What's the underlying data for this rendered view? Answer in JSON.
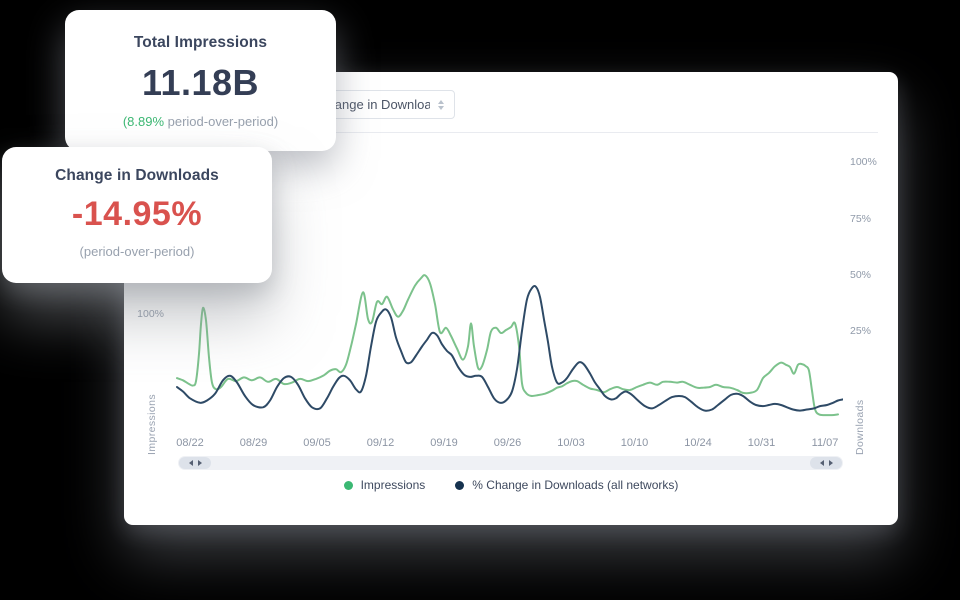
{
  "cards": [
    {
      "title": "Total Impressions",
      "value": "11.18B",
      "sub_highlight": "(8.89%",
      "sub_rest": " period-over-period)"
    },
    {
      "title": "Change in Downloads",
      "value": "-14.95%",
      "sub": "(period-over-period)"
    }
  ],
  "panel": {
    "dropdown_value": "% Change in Downloads"
  },
  "icons": {
    "dropdown_chevron": "select-up-down-chevron",
    "scroll_left_arrow": "left-triangle",
    "scroll_right_arrow": "right-triangle"
  },
  "colors": {
    "green_accent": "#3db874",
    "red_accent": "#d9524e",
    "navy_text": "#343e55",
    "gray_text": "#98a1ae"
  },
  "chart_data": {
    "type": "line",
    "title": "",
    "grid": false,
    "legend_position": "bottom",
    "x_tick_labels": [
      "08/22",
      "08/29",
      "09/05",
      "09/12",
      "09/19",
      "09/26",
      "10/03",
      "10/10",
      "10/24",
      "10/31",
      "11/07"
    ],
    "left_axis": {
      "label": "Impressions",
      "ticks": [
        "100%"
      ],
      "units": "percent"
    },
    "right_axis": {
      "label": "Downloads",
      "ticks": [
        "100%",
        "75%",
        "50%",
        "25%"
      ],
      "range_shown": [
        0,
        100
      ],
      "units": "percent"
    },
    "series": [
      {
        "name": "Impressions",
        "axis": "left",
        "line_color": "#7cc28c",
        "legend_color": "#3bb873",
        "points": [
          [
            2,
            12
          ],
          [
            8,
            9
          ],
          [
            14,
            4
          ],
          [
            18,
            2
          ],
          [
            21,
            8
          ],
          [
            24,
            45
          ],
          [
            26,
            85
          ],
          [
            28,
            107
          ],
          [
            31,
            90
          ],
          [
            34,
            40
          ],
          [
            37,
            6
          ],
          [
            41,
            -3
          ],
          [
            46,
            0
          ],
          [
            53,
            11
          ],
          [
            61,
            8
          ],
          [
            69,
            13
          ],
          [
            77,
            9
          ],
          [
            85,
            13
          ],
          [
            93,
            7
          ],
          [
            101,
            11
          ],
          [
            109,
            4
          ],
          [
            117,
            6
          ],
          [
            125,
            11
          ],
          [
            133,
            8
          ],
          [
            141,
            11
          ],
          [
            149,
            16
          ],
          [
            155,
            22
          ],
          [
            161,
            24
          ],
          [
            166,
            20
          ],
          [
            171,
            30
          ],
          [
            176,
            55
          ],
          [
            181,
            85
          ],
          [
            188,
            128
          ],
          [
            193,
            92
          ],
          [
            197,
            88
          ],
          [
            202,
            115
          ],
          [
            207,
            112
          ],
          [
            212,
            122
          ],
          [
            218,
            105
          ],
          [
            223,
            95
          ],
          [
            228,
            103
          ],
          [
            233,
            118
          ],
          [
            240,
            137
          ],
          [
            246,
            147
          ],
          [
            250,
            151
          ],
          [
            255,
            140
          ],
          [
            260,
            112
          ],
          [
            265,
            74
          ],
          [
            271,
            80
          ],
          [
            276,
            69
          ],
          [
            282,
            52
          ],
          [
            288,
            37
          ],
          [
            293,
            55
          ],
          [
            296,
            86
          ],
          [
            299,
            55
          ],
          [
            303,
            26
          ],
          [
            307,
            28
          ],
          [
            312,
            50
          ],
          [
            316,
            75
          ],
          [
            321,
            80
          ],
          [
            326,
            73
          ],
          [
            331,
            77
          ],
          [
            336,
            81
          ],
          [
            340,
            86
          ],
          [
            344,
            55
          ],
          [
            347,
            5
          ],
          [
            351,
            -8
          ],
          [
            356,
            -12
          ],
          [
            363,
            -11
          ],
          [
            370,
            -9
          ],
          [
            377,
            -5
          ],
          [
            382,
            -1
          ],
          [
            387,
            1
          ],
          [
            392,
            5
          ],
          [
            397,
            8
          ],
          [
            402,
            8
          ],
          [
            408,
            3
          ],
          [
            415,
            -2
          ],
          [
            422,
            -4
          ],
          [
            429,
            -7
          ],
          [
            435,
            -3
          ],
          [
            442,
            0
          ],
          [
            448,
            -3
          ],
          [
            455,
            -4
          ],
          [
            462,
            0
          ],
          [
            468,
            3
          ],
          [
            475,
            6
          ],
          [
            482,
            3
          ],
          [
            488,
            7
          ],
          [
            495,
            7
          ],
          [
            502,
            6
          ],
          [
            508,
            7
          ],
          [
            515,
            3
          ],
          [
            522,
            -1
          ],
          [
            528,
            -1
          ],
          [
            535,
            0
          ],
          [
            541,
            3
          ],
          [
            548,
            0
          ],
          [
            555,
            -1
          ],
          [
            562,
            -4
          ],
          [
            568,
            -8
          ],
          [
            575,
            -8
          ],
          [
            582,
            -4
          ],
          [
            588,
            12
          ],
          [
            594,
            19
          ],
          [
            600,
            28
          ],
          [
            606,
            33
          ],
          [
            611,
            30
          ],
          [
            615,
            27
          ],
          [
            619,
            18
          ],
          [
            623,
            30
          ],
          [
            627,
            31
          ],
          [
            631,
            28
          ],
          [
            634,
            22
          ],
          [
            637,
            -5
          ],
          [
            640,
            -30
          ],
          [
            644,
            -37
          ],
          [
            650,
            -38
          ],
          [
            657,
            -38
          ],
          [
            663,
            -37
          ]
        ]
      },
      {
        "name": "% Change in Downloads (all networks)",
        "axis": "right",
        "line_color": "#2e4a66",
        "legend_color": "#16324f",
        "points": [
          [
            2,
            0
          ],
          [
            8,
            -2
          ],
          [
            15,
            -5
          ],
          [
            25,
            -7
          ],
          [
            32,
            -6
          ],
          [
            40,
            -3
          ],
          [
            48,
            3
          ],
          [
            55,
            5
          ],
          [
            62,
            2
          ],
          [
            70,
            -4
          ],
          [
            78,
            -8
          ],
          [
            88,
            -9
          ],
          [
            95,
            -6
          ],
          [
            102,
            0
          ],
          [
            109,
            4
          ],
          [
            116,
            4.5
          ],
          [
            123,
            1
          ],
          [
            130,
            -5
          ],
          [
            137,
            -9
          ],
          [
            145,
            -9.5
          ],
          [
            152,
            -5
          ],
          [
            158,
            0
          ],
          [
            164,
            4
          ],
          [
            169,
            5
          ],
          [
            175,
            3
          ],
          [
            181,
            -1
          ],
          [
            186,
            -2
          ],
          [
            191,
            5
          ],
          [
            196,
            18
          ],
          [
            201,
            29
          ],
          [
            206,
            33
          ],
          [
            211,
            34.5
          ],
          [
            216,
            31
          ],
          [
            221,
            22
          ],
          [
            226,
            16
          ],
          [
            231,
            11
          ],
          [
            236,
            11
          ],
          [
            241,
            14
          ],
          [
            247,
            18
          ],
          [
            252,
            21
          ],
          [
            257,
            24
          ],
          [
            262,
            23
          ],
          [
            267,
            19
          ],
          [
            272,
            16
          ],
          [
            277,
            14
          ],
          [
            283,
            9
          ],
          [
            289,
            5.5
          ],
          [
            295,
            4.5
          ],
          [
            301,
            5
          ],
          [
            307,
            4.5
          ],
          [
            313,
            0
          ],
          [
            319,
            -5
          ],
          [
            325,
            -7
          ],
          [
            331,
            -6
          ],
          [
            337,
            -2
          ],
          [
            342,
            8
          ],
          [
            347,
            25
          ],
          [
            352,
            39
          ],
          [
            357,
            44
          ],
          [
            361,
            44.5
          ],
          [
            365,
            40
          ],
          [
            369,
            30
          ],
          [
            373,
            20
          ],
          [
            377,
            9
          ],
          [
            382,
            2
          ],
          [
            387,
            2
          ],
          [
            392,
            4
          ],
          [
            398,
            8
          ],
          [
            404,
            11
          ],
          [
            409,
            10
          ],
          [
            415,
            6
          ],
          [
            420,
            2
          ],
          [
            425,
            -1
          ],
          [
            430,
            -4
          ],
          [
            436,
            -5.5
          ],
          [
            441,
            -5
          ],
          [
            446,
            -3
          ],
          [
            451,
            -2
          ],
          [
            457,
            -3.5
          ],
          [
            463,
            -6
          ],
          [
            470,
            -8.5
          ],
          [
            477,
            -9.5
          ],
          [
            484,
            -8
          ],
          [
            491,
            -6
          ],
          [
            497,
            -4.5
          ],
          [
            504,
            -4
          ],
          [
            510,
            -4.5
          ],
          [
            516,
            -6.5
          ],
          [
            523,
            -9
          ],
          [
            530,
            -10.5
          ],
          [
            537,
            -10
          ],
          [
            543,
            -8
          ],
          [
            550,
            -5.5
          ],
          [
            556,
            -3.5
          ],
          [
            562,
            -3
          ],
          [
            568,
            -4
          ],
          [
            575,
            -6.5
          ],
          [
            581,
            -8
          ],
          [
            588,
            -8.5
          ],
          [
            594,
            -8
          ],
          [
            600,
            -7.5
          ],
          [
            606,
            -8
          ],
          [
            612,
            -9
          ],
          [
            618,
            -10
          ],
          [
            625,
            -10.5
          ],
          [
            632,
            -10
          ],
          [
            639,
            -9.5
          ],
          [
            645,
            -8.5
          ],
          [
            652,
            -8
          ],
          [
            658,
            -7
          ],
          [
            663,
            -6
          ],
          [
            668,
            -5.5
          ]
        ]
      }
    ]
  }
}
